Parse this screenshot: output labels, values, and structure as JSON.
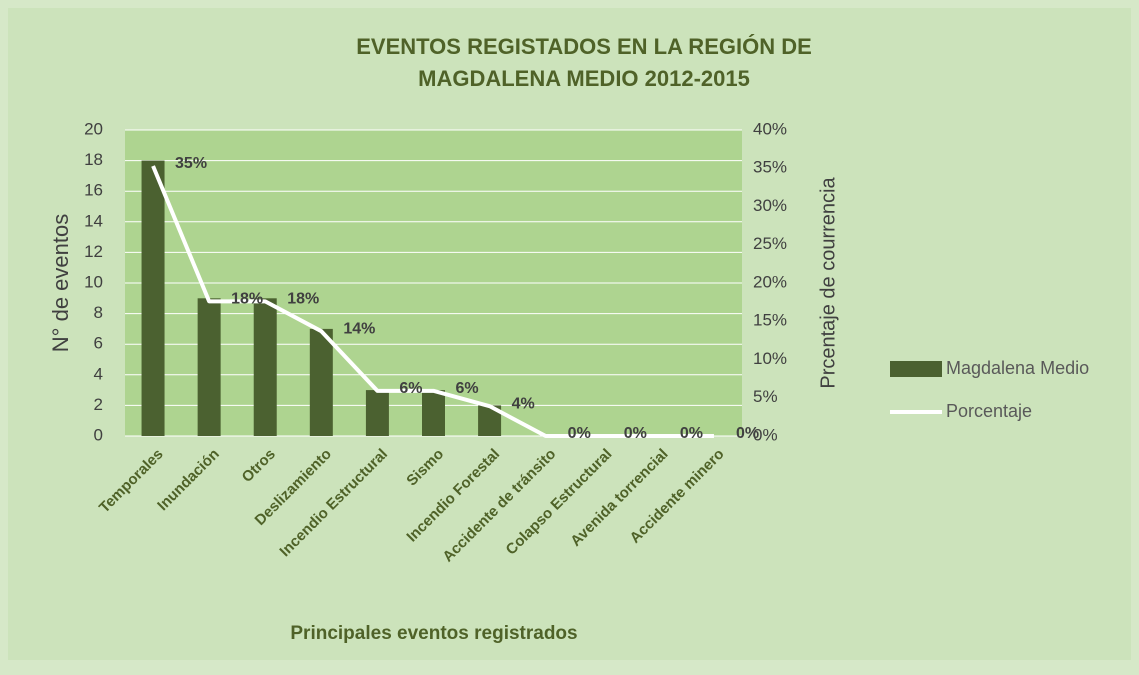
{
  "chart_data": {
    "type": "bar",
    "title": [
      "EVENTOS REGISTADOS EN LA REGIÓN DE",
      "MAGDALENA MEDIO 2012-2015"
    ],
    "x_label": "Principales eventos registrados",
    "y_label": "N° de eventos",
    "y2_label": "Prcentaje de courrencia",
    "categories": [
      "Temporales",
      "Inundación",
      "Otros",
      "Deslizamiento",
      "Incendio Estructural",
      "Sismo",
      "Incendio Forestal",
      "Accidente de tránsito",
      "Colapso Estructural",
      "Avenida torrencial",
      "Accidente minero"
    ],
    "series": [
      {
        "name": "Magdalena Medio",
        "type": "bar",
        "color": "#4b6130",
        "values": [
          18,
          9,
          9,
          7,
          3,
          3,
          2,
          0,
          0,
          0,
          0
        ]
      },
      {
        "name": "Porcentaje",
        "type": "line",
        "axis": "y2",
        "color": "#ffffff",
        "values": [
          35.3,
          17.6,
          17.6,
          13.7,
          5.9,
          5.9,
          3.9,
          0,
          0,
          0,
          0
        ],
        "value_labels": [
          "35%",
          "18%",
          "18%",
          "14%",
          "6%",
          "6%",
          "4%",
          "0%",
          "0%",
          "0%",
          "0%"
        ]
      }
    ],
    "ylim": [
      0,
      20
    ],
    "yticks": [
      0,
      2,
      4,
      6,
      8,
      10,
      12,
      14,
      16,
      18,
      20
    ],
    "y2lim": [
      0,
      40
    ],
    "y2ticks": [
      {
        "value": 0,
        "label": "0%"
      },
      {
        "value": 5,
        "label": "5%"
      },
      {
        "value": 10,
        "label": "10%"
      },
      {
        "value": 15,
        "label": "15%"
      },
      {
        "value": 20,
        "label": "20%"
      },
      {
        "value": 25,
        "label": "25%"
      },
      {
        "value": 30,
        "label": "30%"
      },
      {
        "value": 35,
        "label": "35%"
      },
      {
        "value": 40,
        "label": "40%"
      }
    ],
    "grid": true,
    "legend": "right"
  }
}
